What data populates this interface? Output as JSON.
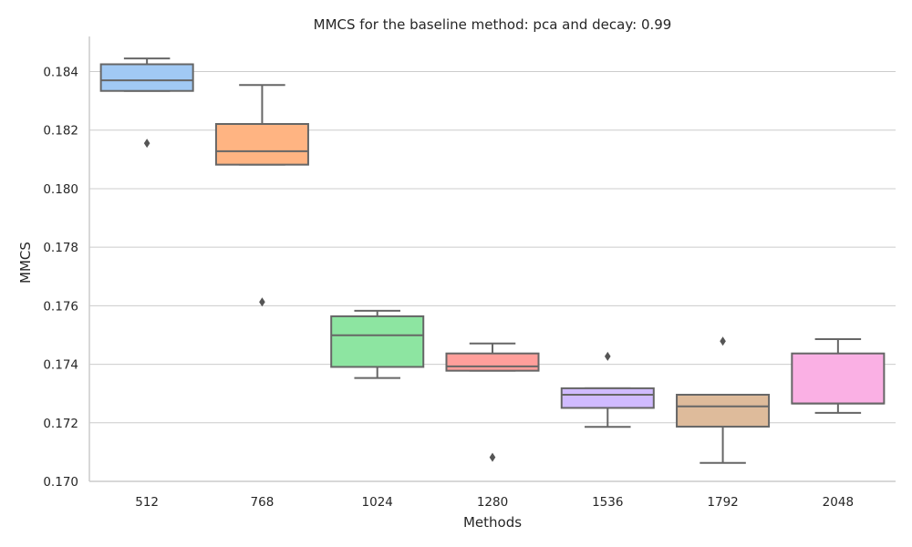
{
  "chart_data": {
    "type": "box",
    "title": "MMCS for the baseline method: pca and decay: 0.99",
    "xlabel": "Methods",
    "ylabel": "MMCS",
    "ylim": [
      0.17,
      0.1852
    ],
    "yticks": [
      "0.170",
      "0.172",
      "0.174",
      "0.176",
      "0.178",
      "0.180",
      "0.182",
      "0.184"
    ],
    "grid": "horizontal",
    "categories": [
      "512",
      "768",
      "1024",
      "1280",
      "1536",
      "1792",
      "2048"
    ],
    "colors": [
      "#a1c9f4",
      "#ffb482",
      "#8de5a1",
      "#ff9f9b",
      "#d0bbff",
      "#debb9b",
      "#fab0e4"
    ],
    "boxes": [
      {
        "category": "512",
        "whisker_low": 0.18334,
        "q1": 0.18334,
        "median": 0.1837,
        "q3": 0.18425,
        "whisker_high": 0.18445,
        "outliers": [
          0.18155
        ]
      },
      {
        "category": "768",
        "whisker_low": 0.18082,
        "q1": 0.18082,
        "median": 0.18128,
        "q3": 0.18221,
        "whisker_high": 0.18354,
        "outliers": [
          0.17613
        ]
      },
      {
        "category": "1024",
        "whisker_low": 0.17353,
        "q1": 0.17391,
        "median": 0.17499,
        "q3": 0.17564,
        "whisker_high": 0.17583,
        "outliers": []
      },
      {
        "category": "1280",
        "whisker_low": 0.17378,
        "q1": 0.17378,
        "median": 0.17393,
        "q3": 0.17437,
        "whisker_high": 0.17471,
        "outliers": [
          0.17082
        ]
      },
      {
        "category": "1536",
        "whisker_low": 0.17186,
        "q1": 0.17251,
        "median": 0.17296,
        "q3": 0.17318,
        "whisker_high": 0.17318,
        "outliers": [
          0.17427
        ]
      },
      {
        "category": "1792",
        "whisker_low": 0.17063,
        "q1": 0.17187,
        "median": 0.17256,
        "q3": 0.17296,
        "whisker_high": 0.17296,
        "outliers": [
          0.17479
        ]
      },
      {
        "category": "2048",
        "whisker_low": 0.17234,
        "q1": 0.17266,
        "median": 0.17266,
        "q3": 0.17437,
        "whisker_high": 0.17486,
        "outliers": []
      }
    ]
  }
}
